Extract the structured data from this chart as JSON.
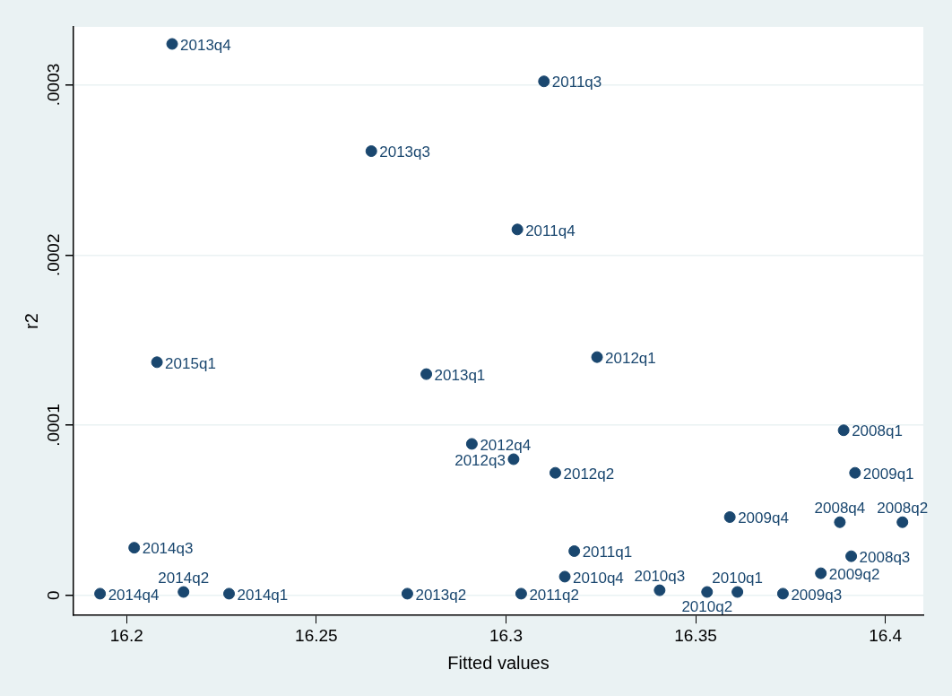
{
  "chart_data": {
    "type": "scatter",
    "xlabel": "Fitted values",
    "ylabel": "r2",
    "xlim": [
      16.186,
      16.41
    ],
    "xticks": [
      16.2,
      16.25,
      16.3,
      16.35,
      16.4
    ],
    "ylim": [
      -1.18e-05,
      0.000334
    ],
    "yticks": [
      0,
      {
        "value": 0.0001,
        "label": ".0001"
      },
      {
        "value": 0.0002,
        "label": ".0002"
      },
      {
        "value": 0.0003,
        "label": ".0003"
      }
    ],
    "grid": "y",
    "legend": false,
    "marker": "circle",
    "series": [
      {
        "color": "#1a476f",
        "x": [
          16.212,
          16.31,
          16.2645,
          16.303,
          16.208,
          16.279,
          16.324,
          16.389,
          16.392,
          16.291,
          16.302,
          16.313,
          16.359,
          16.388,
          16.4045,
          16.202,
          16.318,
          16.391,
          16.383,
          16.3155,
          16.193,
          16.215,
          16.227,
          16.274,
          16.304,
          16.3405,
          16.353,
          16.361,
          16.373
        ],
        "values": [
          0.000324,
          0.000302,
          0.000261,
          0.000215,
          0.000137,
          0.00013,
          0.00014,
          9.7e-05,
          7.2e-05,
          8.9e-05,
          8e-05,
          7.2e-05,
          4.6e-05,
          4.3e-05,
          4.3e-05,
          2.8e-05,
          2.6e-05,
          2.3e-05,
          1.3e-05,
          1.1e-05,
          1e-06,
          2e-06,
          1e-06,
          1e-06,
          1e-06,
          3e-06,
          2e-06,
          2e-06,
          1e-06
        ],
        "value_labels": [
          "2013q4",
          "2011q3",
          "2013q3",
          "2011q4",
          "2015q1",
          "2013q1",
          "2012q1",
          "2008q1",
          "2009q1",
          "2012q4",
          "2012q3",
          "2012q2",
          "2009q4",
          "2008q4",
          "2008q2",
          "2014q3",
          "2011q1",
          "2008q3",
          "2009q2",
          "2010q4",
          "2014q4",
          "2014q2",
          "2014q1",
          "2013q2",
          "2011q2",
          "2010q3",
          "2010q2",
          "2010q1",
          "2009q3"
        ]
      }
    ]
  }
}
